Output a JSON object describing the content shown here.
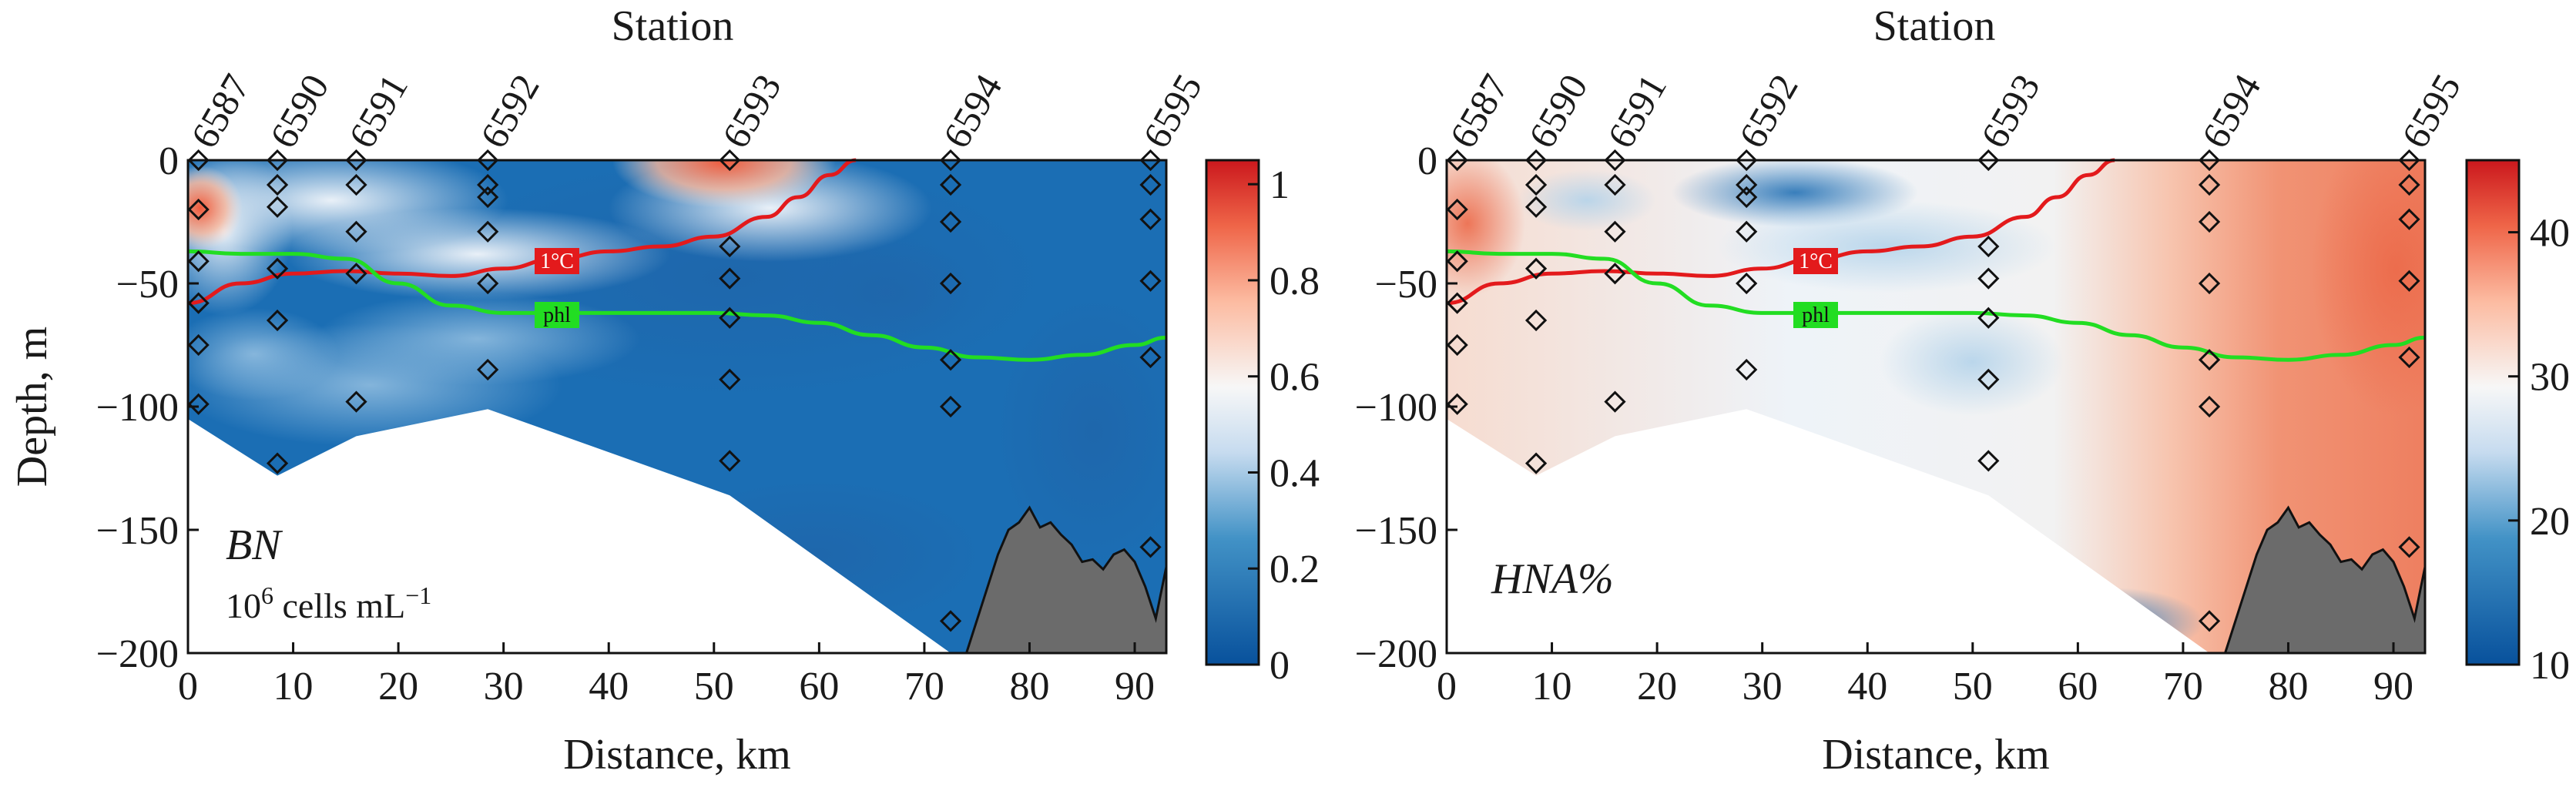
{
  "panels": [
    {
      "id": "left",
      "annotation_main": "BN",
      "annotation_sub_base": "10",
      "annotation_sub_exp": "6",
      "annotation_sub_unit": "cells mL",
      "annotation_sub_unit_exp": "−1",
      "colorbar": {
        "ticks": [
          "0",
          "0.2",
          "0.4",
          "0.6",
          "0.8",
          "1"
        ],
        "min": 0,
        "max": 1.05
      }
    },
    {
      "id": "right",
      "annotation_main": "HNA%",
      "colorbar": {
        "ticks": [
          "10",
          "20",
          "30",
          "40"
        ],
        "min": 10,
        "max": 45
      }
    }
  ],
  "chart_data": [
    {
      "type": "heatmap",
      "title": "Station",
      "xlabel": "Distance, km",
      "ylabel": "Depth, m",
      "xlim": [
        0,
        93
      ],
      "ylim": [
        -200,
        0
      ],
      "x_ticks": [
        "0",
        "10",
        "20",
        "30",
        "40",
        "50",
        "60",
        "70",
        "80",
        "90"
      ],
      "y_ticks": [
        "0",
        "−50",
        "−100",
        "−150",
        "−200"
      ],
      "stations": [
        {
          "label": "6587",
          "x": 1
        },
        {
          "label": "6590",
          "x": 8.5
        },
        {
          "label": "6591",
          "x": 16
        },
        {
          "label": "6592",
          "x": 28.5
        },
        {
          "label": "6593",
          "x": 51.5
        },
        {
          "label": "6594",
          "x": 72.5
        },
        {
          "label": "6595",
          "x": 91.5
        }
      ],
      "samples": [
        [
          1,
          0
        ],
        [
          1,
          -20
        ],
        [
          1,
          -41
        ],
        [
          1,
          -58
        ],
        [
          1,
          -75
        ],
        [
          1,
          -99
        ],
        [
          8.5,
          0
        ],
        [
          8.5,
          -10
        ],
        [
          8.5,
          -19
        ],
        [
          8.5,
          -44
        ],
        [
          8.5,
          -65
        ],
        [
          8.5,
          -123
        ],
        [
          16,
          0
        ],
        [
          16,
          -10
        ],
        [
          16,
          -29
        ],
        [
          16,
          -46
        ],
        [
          16,
          -98
        ],
        [
          28.5,
          0
        ],
        [
          28.5,
          -10
        ],
        [
          28.5,
          -15
        ],
        [
          28.5,
          -29
        ],
        [
          28.5,
          -50
        ],
        [
          28.5,
          -85
        ],
        [
          51.5,
          0
        ],
        [
          51.5,
          -35
        ],
        [
          51.5,
          -48
        ],
        [
          51.5,
          -64
        ],
        [
          51.5,
          -89
        ],
        [
          51.5,
          -122
        ],
        [
          72.5,
          0
        ],
        [
          72.5,
          -10
        ],
        [
          72.5,
          -25
        ],
        [
          72.5,
          -50
        ],
        [
          72.5,
          -81
        ],
        [
          72.5,
          -100
        ],
        [
          72.5,
          -187
        ],
        [
          91.5,
          0
        ],
        [
          91.5,
          -10
        ],
        [
          91.5,
          -24
        ],
        [
          91.5,
          -49
        ],
        [
          91.5,
          -80
        ],
        [
          91.5,
          -157
        ]
      ],
      "contour_1C": {
        "label": "1°C",
        "color": "#e31a1c",
        "x": [
          0,
          5,
          10,
          15,
          20,
          25,
          30,
          35,
          40,
          45,
          50,
          55,
          58,
          61,
          63.5
        ],
        "y": [
          -58,
          -50,
          -46,
          -45,
          -46,
          -47,
          -44,
          -40,
          -37,
          -35,
          -31,
          -23,
          -15,
          -6,
          0
        ]
      },
      "contour_phl": {
        "label": "phl",
        "color": "#22dd22",
        "x": [
          0,
          5,
          10,
          15,
          20,
          25,
          30,
          35,
          40,
          45,
          50,
          55,
          60,
          65,
          70,
          75,
          80,
          85,
          90,
          93
        ],
        "y": [
          -37,
          -38,
          -38,
          -40,
          -50,
          -59,
          -62,
          -62,
          -62,
          -62,
          -62,
          -63,
          -66,
          -71,
          -76,
          -80,
          -81,
          -79,
          -75,
          -72
        ]
      }
    },
    {
      "type": "heatmap",
      "title": "Station",
      "xlabel": "Distance, km",
      "ylabel": "",
      "xlim": [
        0,
        93
      ],
      "ylim": [
        -200,
        0
      ],
      "x_ticks": [
        "0",
        "10",
        "20",
        "30",
        "40",
        "50",
        "60",
        "70",
        "80",
        "90"
      ],
      "y_ticks": [
        "0",
        "−50",
        "−100",
        "−150",
        "−200"
      ],
      "stations": [
        {
          "label": "6587",
          "x": 1
        },
        {
          "label": "6590",
          "x": 8.5
        },
        {
          "label": "6591",
          "x": 16
        },
        {
          "label": "6592",
          "x": 28.5
        },
        {
          "label": "6593",
          "x": 51.5
        },
        {
          "label": "6594",
          "x": 72.5
        },
        {
          "label": "6595",
          "x": 91.5
        }
      ],
      "samples": [
        [
          1,
          0
        ],
        [
          1,
          -20
        ],
        [
          1,
          -41
        ],
        [
          1,
          -58
        ],
        [
          1,
          -75
        ],
        [
          1,
          -99
        ],
        [
          8.5,
          0
        ],
        [
          8.5,
          -10
        ],
        [
          8.5,
          -19
        ],
        [
          8.5,
          -44
        ],
        [
          8.5,
          -65
        ],
        [
          8.5,
          -123
        ],
        [
          16,
          0
        ],
        [
          16,
          -10
        ],
        [
          16,
          -29
        ],
        [
          16,
          -46
        ],
        [
          16,
          -98
        ],
        [
          28.5,
          0
        ],
        [
          28.5,
          -10
        ],
        [
          28.5,
          -15
        ],
        [
          28.5,
          -29
        ],
        [
          28.5,
          -50
        ],
        [
          28.5,
          -85
        ],
        [
          51.5,
          0
        ],
        [
          51.5,
          -35
        ],
        [
          51.5,
          -48
        ],
        [
          51.5,
          -64
        ],
        [
          51.5,
          -89
        ],
        [
          51.5,
          -122
        ],
        [
          72.5,
          0
        ],
        [
          72.5,
          -10
        ],
        [
          72.5,
          -25
        ],
        [
          72.5,
          -50
        ],
        [
          72.5,
          -81
        ],
        [
          72.5,
          -100
        ],
        [
          72.5,
          -187
        ],
        [
          91.5,
          0
        ],
        [
          91.5,
          -10
        ],
        [
          91.5,
          -24
        ],
        [
          91.5,
          -49
        ],
        [
          91.5,
          -80
        ],
        [
          91.5,
          -157
        ]
      ],
      "contour_1C": {
        "label": "1°C",
        "color": "#e31a1c",
        "x": [
          0,
          5,
          10,
          15,
          20,
          25,
          30,
          35,
          40,
          45,
          50,
          55,
          58,
          61,
          63.5
        ],
        "y": [
          -58,
          -50,
          -46,
          -45,
          -46,
          -47,
          -44,
          -40,
          -37,
          -35,
          -31,
          -23,
          -15,
          -6,
          0
        ]
      },
      "contour_phl": {
        "label": "phl",
        "color": "#22dd22",
        "x": [
          0,
          5,
          10,
          15,
          20,
          25,
          30,
          35,
          40,
          45,
          50,
          55,
          60,
          65,
          70,
          75,
          80,
          85,
          90,
          93
        ],
        "y": [
          -37,
          -38,
          -38,
          -40,
          -50,
          -59,
          -62,
          -62,
          -62,
          -62,
          -62,
          -63,
          -66,
          -71,
          -76,
          -80,
          -81,
          -79,
          -75,
          -72
        ]
      }
    }
  ],
  "section_boundary": {
    "x": [
      0,
      8.5,
      16,
      28.5,
      51.5,
      72.5
    ],
    "y": [
      -105,
      -128,
      -112,
      -101,
      -136,
      -200
    ]
  },
  "seafloor": {
    "x": [
      74,
      77,
      78,
      79,
      80,
      81,
      82,
      83,
      84,
      85,
      86,
      87,
      88,
      89,
      90,
      91,
      92,
      93
    ],
    "y": [
      -200,
      -160,
      -150,
      -147,
      -141,
      -149,
      -147,
      -152,
      -156,
      -163,
      -162,
      -166,
      -160,
      -158,
      -163,
      -173,
      -186,
      -165
    ]
  }
}
